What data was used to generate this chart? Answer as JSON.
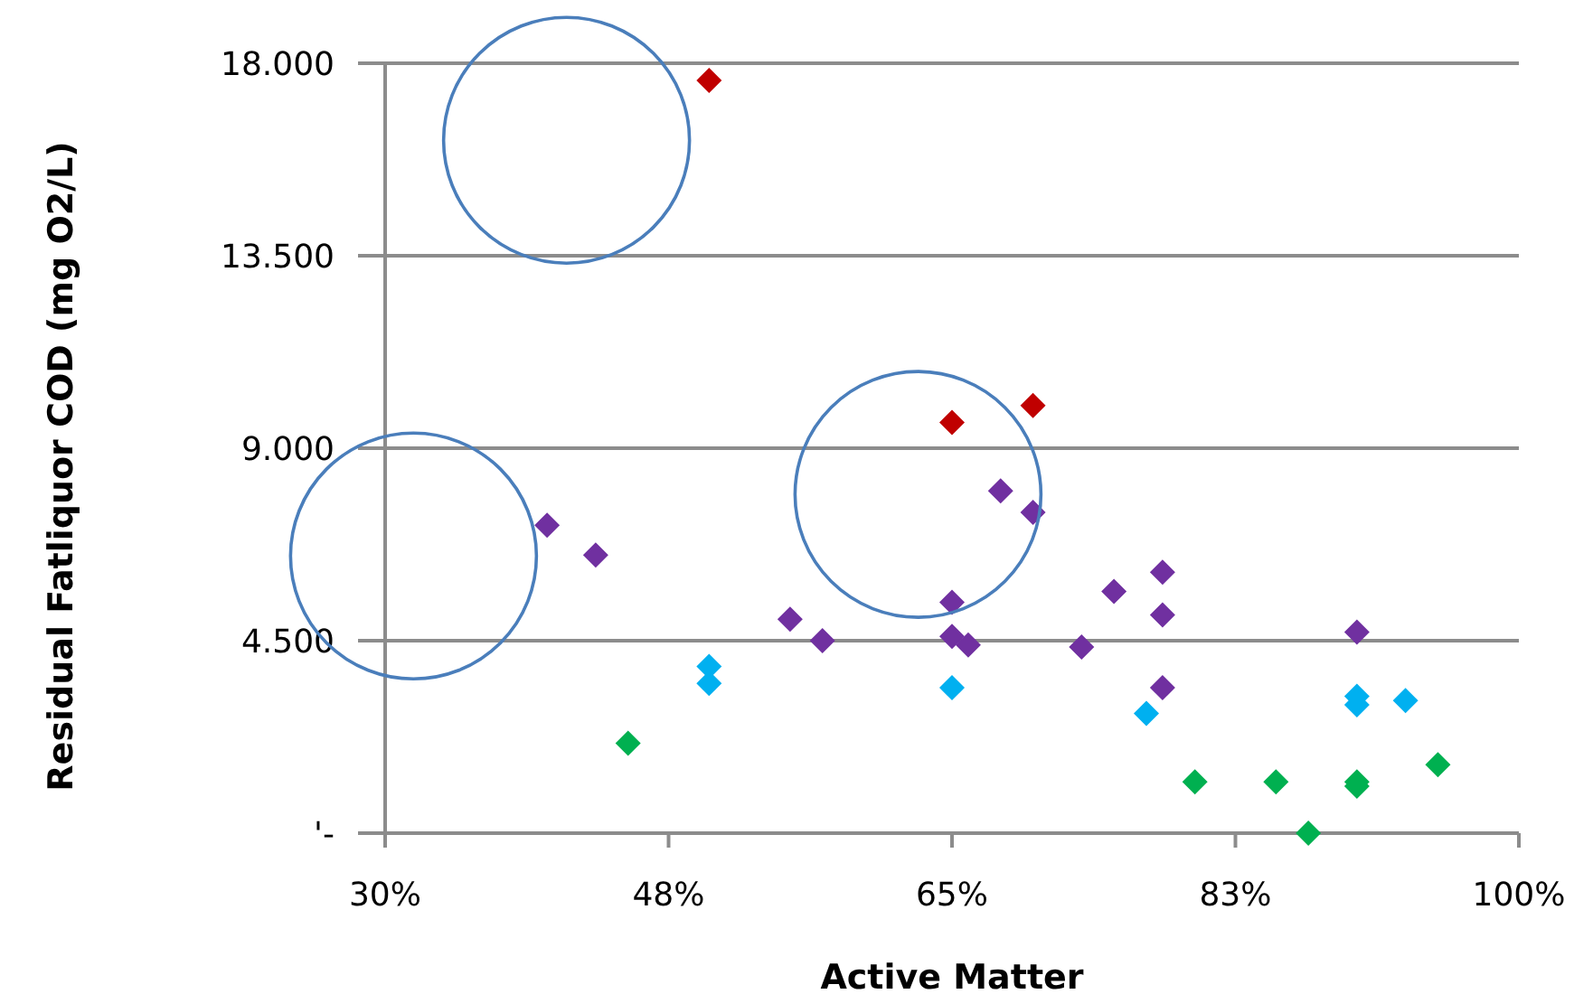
{
  "chart_data": {
    "type": "scatter",
    "xlabel": "Active Matter",
    "ylabel": "Residual Fatliquor COD (mg O2/L)",
    "xlim": [
      30,
      100
    ],
    "xticks": [
      {
        "value": 30,
        "label": "30%"
      },
      {
        "value": 47.5,
        "label": "48%"
      },
      {
        "value": 65,
        "label": "65%"
      },
      {
        "value": 82.5,
        "label": "83%"
      },
      {
        "value": 100,
        "label": "100%"
      }
    ],
    "ylim": [
      0,
      18000
    ],
    "yticks": [
      {
        "value": 0,
        "label": "'-"
      },
      {
        "value": 4500,
        "label": "4.500"
      },
      {
        "value": 9000,
        "label": "9.000"
      },
      {
        "value": 13500,
        "label": "13.500"
      },
      {
        "value": 18000,
        "label": "18.000"
      }
    ],
    "grid": "y",
    "marker": "diamond",
    "series": [
      {
        "color": "#c00000",
        "x": [
          50,
          65,
          70
        ],
        "values": [
          17600,
          9600,
          10000
        ]
      },
      {
        "color": "#7030a0",
        "x": [
          40,
          43,
          55,
          57,
          65,
          65,
          66,
          68,
          70,
          73,
          75,
          78,
          78,
          78,
          90
        ],
        "values": [
          7200,
          6500,
          5000,
          4500,
          5400,
          4600,
          4400,
          8000,
          7500,
          4350,
          5650,
          6100,
          5100,
          3400,
          4700
        ]
      },
      {
        "color": "#00b0f0",
        "x": [
          50,
          50,
          65,
          77,
          90,
          90,
          93
        ],
        "values": [
          3900,
          3500,
          3400,
          2800,
          3200,
          3000,
          3100
        ]
      },
      {
        "color": "#00b050",
        "x": [
          45,
          80,
          85,
          90,
          90,
          87,
          95
        ],
        "values": [
          2100,
          1200,
          1200,
          1200,
          1100,
          0,
          1600
        ]
      }
    ]
  }
}
